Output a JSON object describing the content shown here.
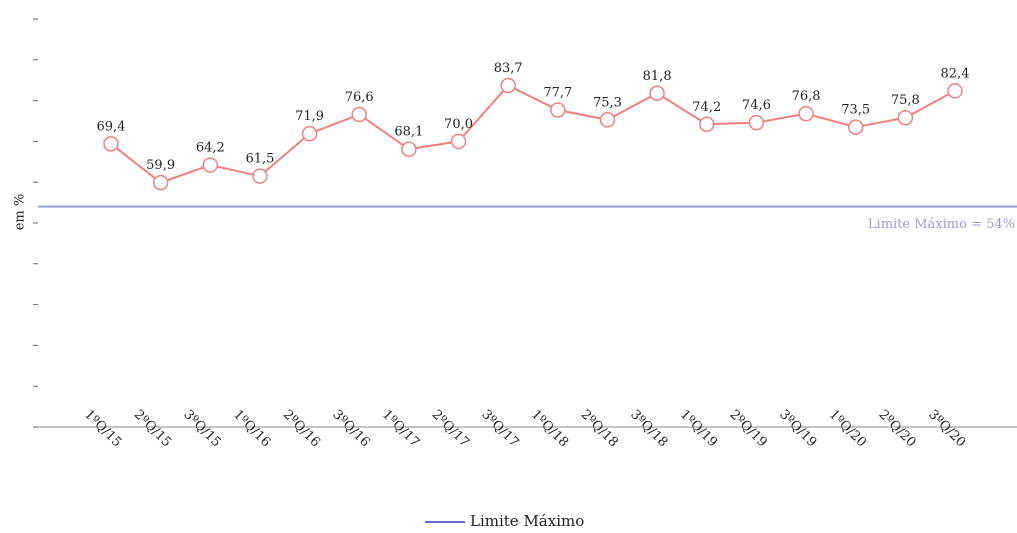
{
  "chart_data": {
    "type": "line",
    "y_label": "em %",
    "categories": [
      "1ºQ/15",
      "2ºQ/15",
      "3ºQ/15",
      "1ºQ/16",
      "2ºQ/16",
      "3ºQ/16",
      "1ºQ/17",
      "2ºQ/17",
      "3ºQ/17",
      "1ºQ/18",
      "2ºQ/18",
      "3ºQ/18",
      "1ºQ/19",
      "2ºQ/19",
      "3ºQ/19",
      "1ºQ/20",
      "2ºQ/20",
      "3ºQ/20"
    ],
    "series": [
      {
        "color": "#f08080",
        "values": [
          69.4,
          59.9,
          64.2,
          61.5,
          71.9,
          76.6,
          68.1,
          70.0,
          83.7,
          77.7,
          75.3,
          81.8,
          74.2,
          74.6,
          76.8,
          73.5,
          75.8,
          82.4
        ],
        "value_labels": [
          "69,4",
          "59,9",
          "64,2",
          "61,5",
          "71,9",
          "76,6",
          "68,1",
          "70,0",
          "83,7",
          "77,7",
          "75,3",
          "81,8",
          "74,2",
          "74,6",
          "76,8",
          "73,5",
          "75,8",
          "82,4"
        ]
      }
    ],
    "limit": {
      "value": 54,
      "label": "Limite Máximo = 54%",
      "legend": "Limite Máximo",
      "color": "#9a9ada",
      "legend_color": "#3333cc"
    },
    "ylim": [
      0,
      100
    ],
    "yticks": [
      0,
      10,
      20,
      30,
      40,
      50,
      60,
      70,
      80,
      90,
      100
    ]
  }
}
